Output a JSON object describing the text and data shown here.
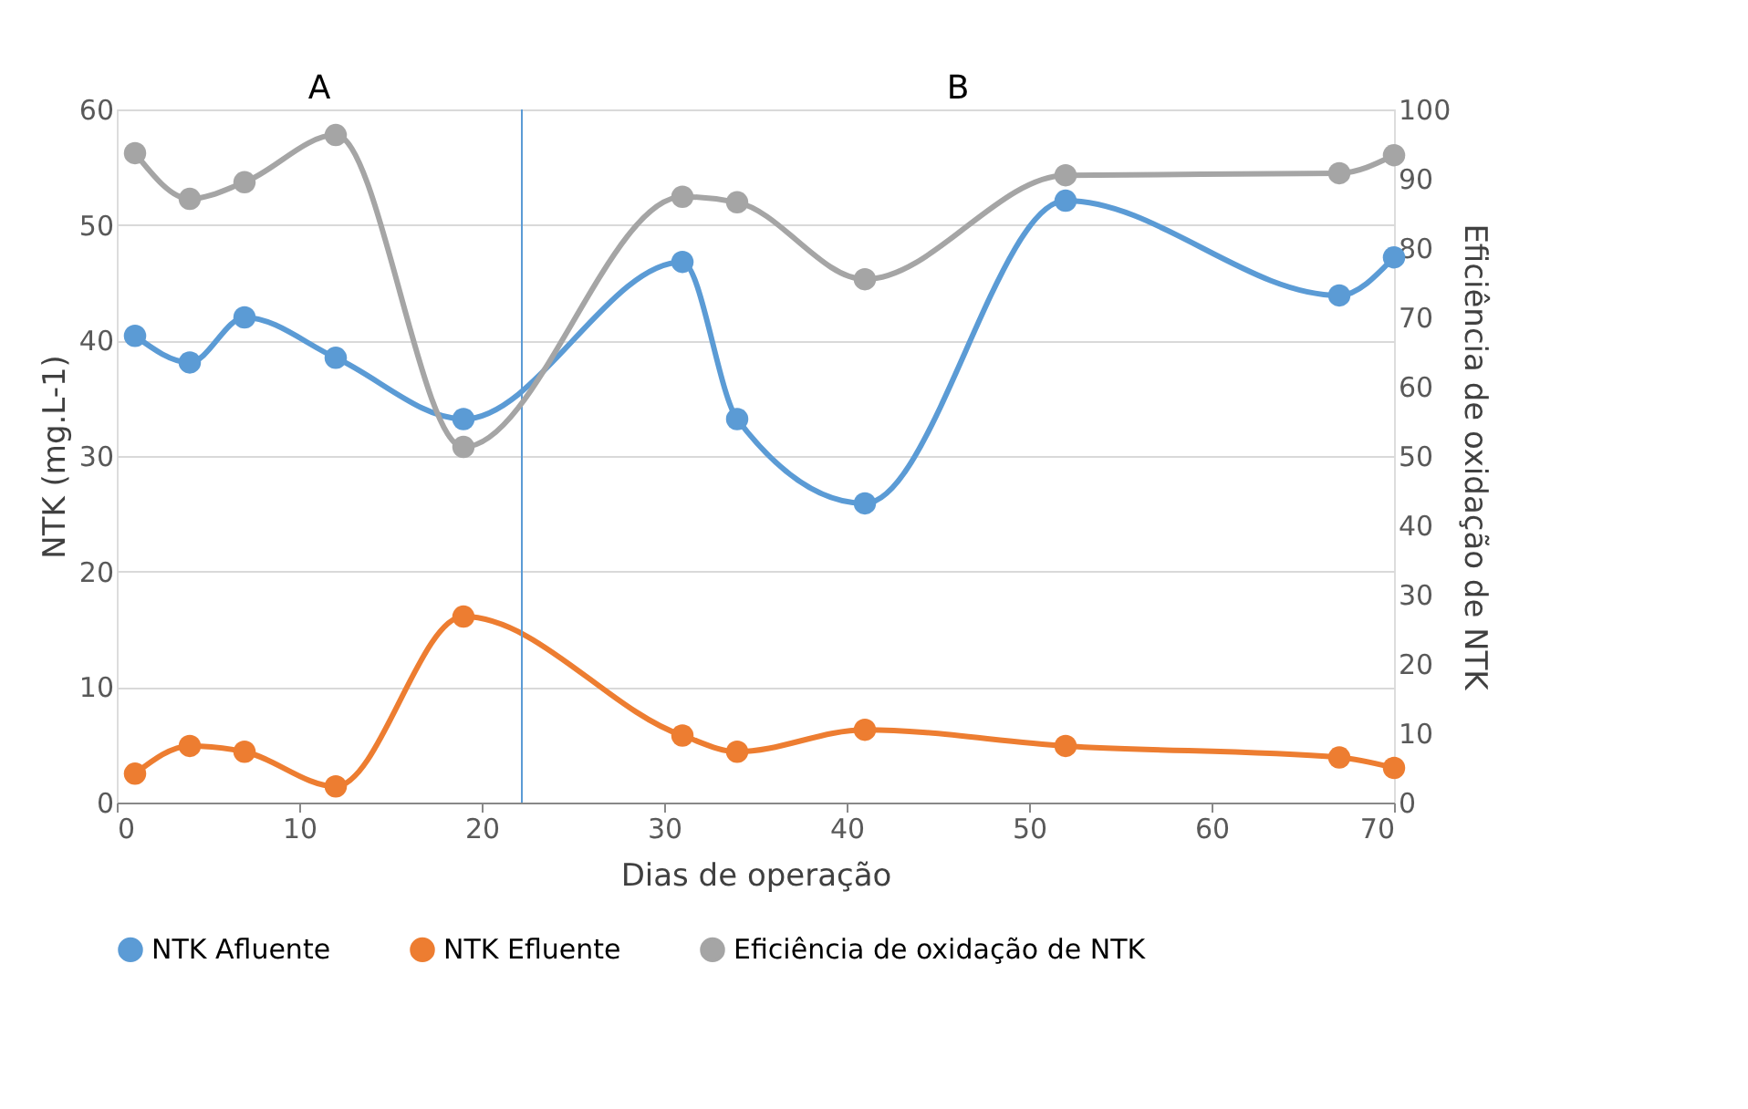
{
  "chart_data": {
    "type": "line",
    "xlabel": "Dias de operação",
    "ylabel": "NTK (mg.L-1)",
    "y2label": "Eficiência de oxidação de NTK",
    "x": [
      1,
      4,
      7,
      12,
      19,
      31,
      34,
      41,
      52,
      67,
      70
    ],
    "series": [
      {
        "name": "NTK Afluente",
        "color": "#5b9bd5",
        "values": [
          40.4,
          38.1,
          42.0,
          38.5,
          33.2,
          46.8,
          33.2,
          25.9,
          52.1,
          43.9,
          47.2
        ]
      },
      {
        "name": "NTK Efluente",
        "color": "#ed7d31",
        "values": [
          2.5,
          4.9,
          4.4,
          1.4,
          16.1,
          5.8,
          4.4,
          6.3,
          4.9,
          3.9,
          3.0
        ]
      },
      {
        "name": "Eficiência de oxidação de NTK",
        "color": "#a5a5a5",
        "axis": "y2",
        "values": [
          93.7,
          87.1,
          89.5,
          96.3,
          51.3,
          87.4,
          86.6,
          75.5,
          90.5,
          90.8,
          93.4
        ]
      }
    ],
    "xlim": [
      0,
      70
    ],
    "xticks": [
      0,
      10,
      20,
      30,
      40,
      50,
      60,
      70
    ],
    "ylim": [
      0,
      60
    ],
    "yticks": [
      0,
      10,
      20,
      30,
      40,
      50,
      60
    ],
    "y2lim": [
      0,
      100
    ],
    "y2ticks": [
      0,
      10,
      20,
      30,
      40,
      50,
      60,
      70,
      80,
      90,
      100
    ],
    "ref_lines": [
      {
        "axis": "x",
        "value": 22.2,
        "color": "#5b9bd5"
      }
    ],
    "annotations": [
      "A",
      "B"
    ],
    "grid": "y",
    "legend": "bottom",
    "marker": "circle",
    "line_style": "solid"
  }
}
